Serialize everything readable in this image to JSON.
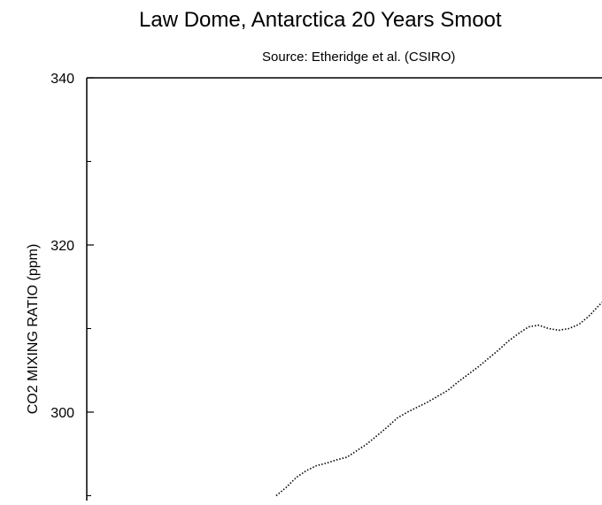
{
  "chart_data": {
    "type": "line",
    "title": "Law Dome, Antarctica 20 Years Smoot",
    "subtitle": "Source: Etheridge et al. (CSIRO)",
    "xlabel": "",
    "ylabel": "CO2 MIXING RATIO  (ppm)",
    "ylim": [
      290,
      340
    ],
    "yticks": [
      300,
      320,
      340
    ],
    "grid": false,
    "line_style": "dotted",
    "series": [
      {
        "values": [
          [
            0,
            290.0
          ],
          [
            4,
            291.0
          ],
          [
            8,
            292.2
          ],
          [
            12,
            293.0
          ],
          [
            16,
            293.6
          ],
          [
            20,
            293.9
          ],
          [
            24,
            294.3
          ],
          [
            28,
            294.6
          ],
          [
            32,
            295.4
          ],
          [
            36,
            296.2
          ],
          [
            40,
            297.2
          ],
          [
            44,
            298.2
          ],
          [
            48,
            299.3
          ],
          [
            52,
            300.0
          ],
          [
            56,
            300.6
          ],
          [
            60,
            301.2
          ],
          [
            64,
            301.9
          ],
          [
            68,
            302.6
          ],
          [
            72,
            303.6
          ],
          [
            76,
            304.5
          ],
          [
            80,
            305.4
          ],
          [
            84,
            306.4
          ],
          [
            88,
            307.4
          ],
          [
            92,
            308.5
          ],
          [
            96,
            309.4
          ],
          [
            100,
            310.2
          ],
          [
            104,
            310.4
          ],
          [
            108,
            310.0
          ],
          [
            112,
            309.8
          ],
          [
            116,
            310.0
          ],
          [
            120,
            310.5
          ],
          [
            124,
            311.5
          ],
          [
            128,
            312.8
          ],
          [
            132,
            313.9
          ]
        ]
      }
    ]
  }
}
